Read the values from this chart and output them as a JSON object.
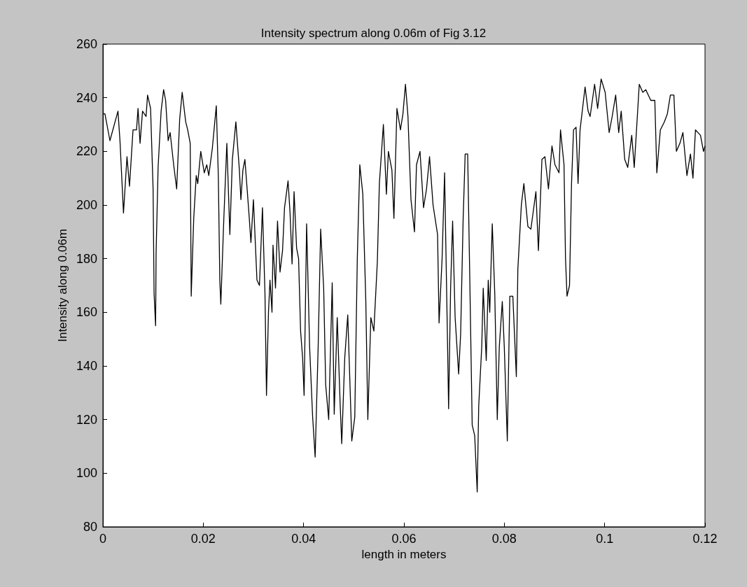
{
  "chart_data": {
    "type": "line",
    "title": "Intensity spectrum along 0.06m of Fig 3.12",
    "xlabel": "length in meters",
    "ylabel": "Intensity along 0.06m",
    "xlim": [
      0,
      0.12
    ],
    "xticks": [
      0,
      0.02,
      0.04,
      0.06,
      0.08,
      0.1,
      0.12
    ],
    "ylim": [
      80,
      260
    ],
    "yticks": [
      80,
      100,
      120,
      140,
      160,
      180,
      200,
      220,
      240,
      260
    ],
    "marker": "none",
    "line_style": "solid",
    "series": [
      {
        "color": "#000000",
        "x": [
          0,
          0.0004,
          0.0014,
          0.003,
          0.0034,
          0.0041,
          0.0048,
          0.0053,
          0.006,
          0.0067,
          0.007,
          0.0074,
          0.0079,
          0.0086,
          0.0089,
          0.0095,
          0.01,
          0.0102,
          0.0105,
          0.0106,
          0.011,
          0.0116,
          0.0121,
          0.0125,
          0.013,
          0.0134,
          0.0141,
          0.0147,
          0.0153,
          0.0158,
          0.0165,
          0.0169,
          0.0174,
          0.0176,
          0.0181,
          0.0186,
          0.0189,
          0.0195,
          0.0202,
          0.0207,
          0.0211,
          0.0218,
          0.0226,
          0.023,
          0.0233,
          0.0235,
          0.0241,
          0.0247,
          0.0253,
          0.0258,
          0.0265,
          0.0272,
          0.0275,
          0.0279,
          0.0283,
          0.0291,
          0.0295,
          0.03,
          0.0307,
          0.0312,
          0.0318,
          0.0323,
          0.0326,
          0.033,
          0.0333,
          0.0337,
          0.0339,
          0.0344,
          0.0348,
          0.0353,
          0.0358,
          0.0362,
          0.0369,
          0.0373,
          0.0377,
          0.0381,
          0.0386,
          0.039,
          0.0394,
          0.0398,
          0.0401,
          0.0406,
          0.0412,
          0.0418,
          0.0423,
          0.0429,
          0.0434,
          0.044,
          0.0444,
          0.045,
          0.0457,
          0.0461,
          0.0467,
          0.0473,
          0.0476,
          0.0482,
          0.0488,
          0.0496,
          0.0502,
          0.0507,
          0.0512,
          0.0518,
          0.0524,
          0.0528,
          0.0534,
          0.054,
          0.0547,
          0.0551,
          0.0559,
          0.0565,
          0.0569,
          0.0576,
          0.058,
          0.0586,
          0.0593,
          0.0598,
          0.0603,
          0.0608,
          0.0614,
          0.0621,
          0.0625,
          0.0632,
          0.0639,
          0.0645,
          0.0651,
          0.0658,
          0.0667,
          0.067,
          0.0676,
          0.0681,
          0.0687,
          0.0689,
          0.0693,
          0.0697,
          0.0702,
          0.0709,
          0.0713,
          0.0718,
          0.0722,
          0.0727,
          0.0731,
          0.0736,
          0.0741,
          0.0746,
          0.0749,
          0.0755,
          0.0758,
          0.0764,
          0.0768,
          0.0771,
          0.0776,
          0.0781,
          0.0786,
          0.079,
          0.0796,
          0.08,
          0.0806,
          0.0811,
          0.0817,
          0.0824,
          0.0827,
          0.0834,
          0.0839,
          0.0847,
          0.0853,
          0.0863,
          0.0868,
          0.0875,
          0.0881,
          0.0888,
          0.0895,
          0.0901,
          0.0909,
          0.0912,
          0.0919,
          0.0922,
          0.0925,
          0.093,
          0.0934,
          0.0938,
          0.0943,
          0.0947,
          0.0951,
          0.0961,
          0.0967,
          0.0971,
          0.098,
          0.0986,
          0.0993,
          0.1001,
          0.1009,
          0.1015,
          0.1022,
          0.1028,
          0.1033,
          0.104,
          0.1046,
          0.1054,
          0.1059,
          0.1069,
          0.1076,
          0.1082,
          0.1092,
          0.11,
          0.1104,
          0.1111,
          0.1119,
          0.1125,
          0.1131,
          0.1138,
          0.1143,
          0.115,
          0.1156,
          0.1164,
          0.1171,
          0.1176,
          0.1181,
          0.1191,
          0.1197,
          0.12
        ],
        "values": [
          234,
          234,
          224,
          235,
          224,
          197,
          218,
          207,
          228,
          228,
          236,
          223,
          235,
          233,
          241,
          236,
          206,
          167,
          155,
          182,
          214,
          235,
          243,
          239,
          224,
          227,
          215,
          206,
          232,
          242,
          231,
          228,
          223,
          166,
          195,
          211,
          208,
          220,
          212,
          215,
          211,
          221,
          237,
          211,
          172,
          163,
          195,
          223,
          189,
          217,
          231,
          213,
          202,
          213,
          217,
          197,
          186,
          202,
          172,
          170,
          199,
          167,
          129,
          160,
          172,
          160,
          185,
          169,
          194,
          175,
          183,
          199,
          209,
          197,
          178,
          205,
          184,
          180,
          153,
          143,
          129,
          193,
          147,
          121,
          106,
          147,
          191,
          169,
          133,
          120,
          171,
          122,
          158,
          125,
          111,
          143,
          159,
          112,
          121,
          180,
          215,
          204,
          164,
          120,
          158,
          153,
          179,
          208,
          230,
          204,
          220,
          213,
          195,
          236,
          228,
          234,
          245,
          233,
          202,
          190,
          215,
          220,
          199,
          206,
          218,
          200,
          189,
          156,
          180,
          212,
          147,
          124,
          169,
          194,
          158,
          137,
          152,
          195,
          219,
          219,
          175,
          118,
          114,
          93,
          125,
          147,
          169,
          142,
          172,
          160,
          193,
          167,
          120,
          147,
          164,
          147,
          112,
          166,
          166,
          136,
          176,
          200,
          208,
          192,
          191,
          205,
          183,
          217,
          218,
          206,
          222,
          215,
          212,
          228,
          215,
          180,
          166,
          170,
          208,
          228,
          229,
          208,
          228,
          244,
          235,
          233,
          245,
          236,
          247,
          242,
          227,
          233,
          241,
          227,
          235,
          217,
          214,
          226,
          214,
          245,
          242,
          243,
          239,
          239,
          212,
          228,
          231,
          234,
          241,
          241,
          220,
          223,
          227,
          211,
          219,
          210,
          228,
          226,
          220,
          222
        ]
      }
    ]
  }
}
